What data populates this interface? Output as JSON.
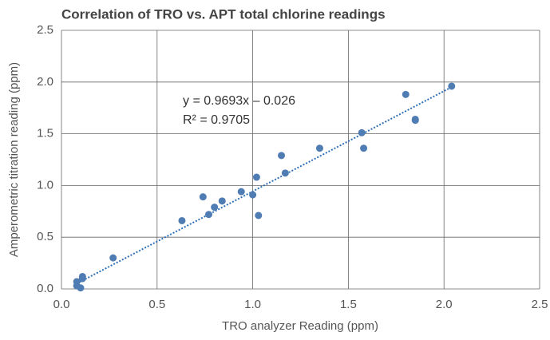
{
  "chart_data": {
    "type": "scatter",
    "title": "Correlation of TRO vs. APT total chlorine readings",
    "xlabel": "TRO analyzer Reading (ppm)",
    "ylabel": "Amperometric titration reading (ppm)",
    "color": "#4f7db3",
    "x": [
      0.08,
      0.08,
      0.1,
      0.11,
      0.11,
      0.27,
      0.63,
      0.74,
      0.77,
      0.8,
      0.84,
      0.94,
      1.0,
      1.02,
      1.03,
      1.15,
      1.17,
      1.35,
      1.57,
      1.58,
      1.8,
      1.85,
      1.85,
      2.04
    ],
    "values": [
      0.07,
      0.03,
      0.01,
      0.1,
      0.12,
      0.3,
      0.66,
      0.89,
      0.72,
      0.79,
      0.85,
      0.94,
      0.91,
      1.08,
      0.71,
      1.29,
      1.12,
      1.36,
      1.51,
      1.36,
      1.88,
      1.64,
      1.63,
      1.96
    ],
    "xlim": [
      0,
      2.5
    ],
    "ylim": [
      0,
      2.5
    ],
    "xticks": [
      {
        "value": 0,
        "label": "0.0"
      },
      0.5,
      {
        "value": 1,
        "label": "1.0"
      },
      1.5,
      {
        "value": 2,
        "label": "2.0"
      },
      2.5
    ],
    "yticks": [
      {
        "value": 0,
        "label": "0.0"
      },
      0.5,
      {
        "value": 1,
        "label": "1.0"
      },
      1.5,
      {
        "value": 2,
        "label": "2.0"
      },
      2.5
    ],
    "grid": true,
    "trendline": {
      "slope": 0.9693,
      "intercept": -0.026,
      "color": "#2f6fb5",
      "equation": "y = 0.9693x – 0.026",
      "r2_label": "R² = 0.9705"
    }
  }
}
